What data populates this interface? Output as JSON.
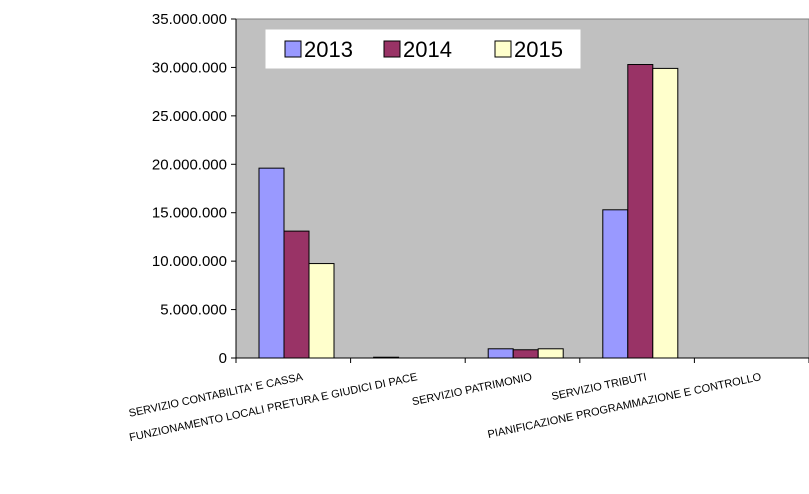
{
  "chart_data": {
    "type": "bar",
    "categories": [
      "SERVIZIO CONTABILITA' E CASSA",
      "FUNZIONAMENTO LOCALI PRETURA E GIUDICI DI PACE",
      "SERVIZIO PATRIMONIO",
      "SERVIZIO TRIBUTI",
      "PIANIFICAZIONE PROGRAMMAZIONE E CONTROLLO"
    ],
    "series": [
      {
        "name": "2013",
        "color": "#9999ff",
        "values": [
          19600000,
          80000,
          950000,
          15300000,
          0
        ]
      },
      {
        "name": "2014",
        "color": "#993366",
        "values": [
          13100000,
          0,
          850000,
          30300000,
          0
        ]
      },
      {
        "name": "2015",
        "color": "#ffffcc",
        "values": [
          9750000,
          0,
          950000,
          29900000,
          0
        ]
      }
    ],
    "yticks": [
      "0",
      "5.000.000",
      "10.000.000",
      "15.000.000",
      "20.000.000",
      "25.000.000",
      "30.000.000",
      "35.000.000"
    ],
    "ylim": [
      0,
      35000000
    ],
    "plot_background": "#c0c0c0",
    "grid": false,
    "legend": "top-left inside plot"
  }
}
